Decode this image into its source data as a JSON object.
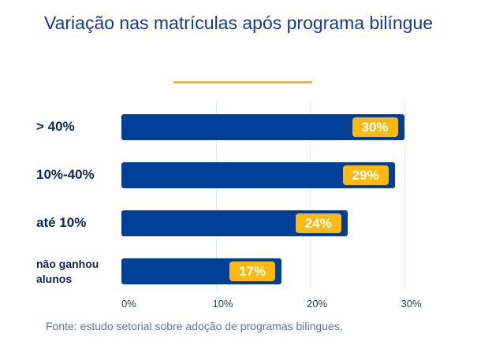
{
  "chart_data": {
    "type": "bar",
    "orientation": "horizontal",
    "title": "Variação nas matrículas após programa bilíngue",
    "categories": [
      "> 40%",
      "10%-40%",
      "até 10%",
      "não ganhou alunos"
    ],
    "values": [
      30,
      29,
      24,
      17
    ],
    "data_labels": [
      "30%",
      "29%",
      "24%",
      "17%"
    ],
    "xlim": [
      0,
      33
    ],
    "x_ticks": [
      "0%",
      "10%",
      "20%",
      "30%"
    ],
    "x_tick_values": [
      0,
      10,
      20,
      30
    ],
    "grid": true,
    "colors": {
      "bar": "#003f98",
      "label_badge": "#fdb913",
      "title": "#15398e",
      "accent_rule": "#f6b718"
    }
  },
  "source": "Fonte: estudo setorial sobre adoção de programas bilingues,"
}
